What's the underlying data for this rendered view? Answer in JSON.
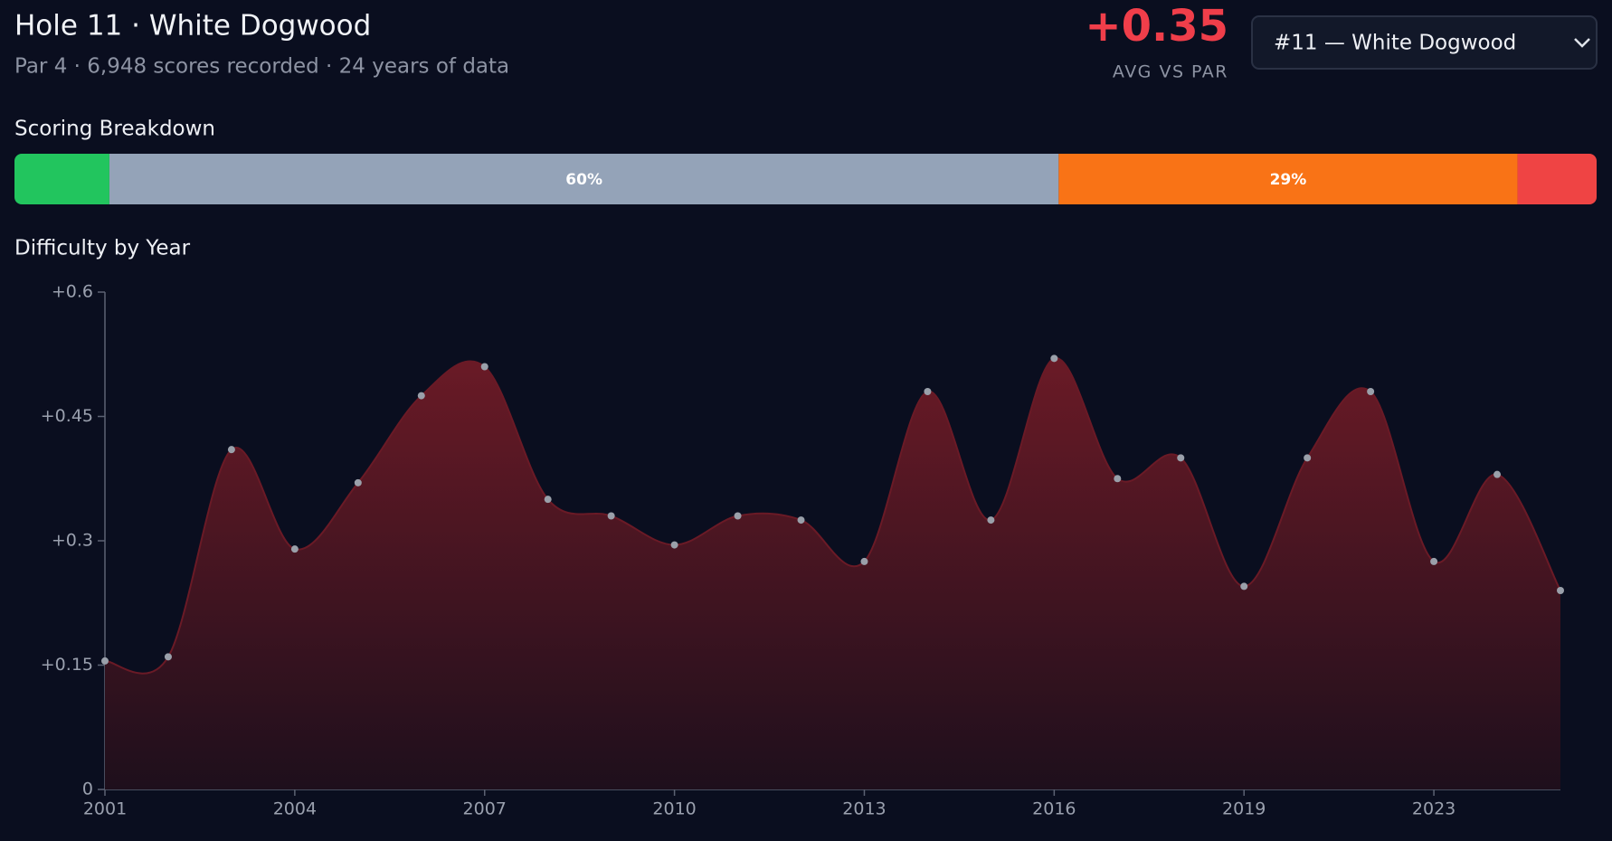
{
  "header": {
    "title": "Hole 11 · White Dogwood",
    "subtitle": "Par 4 · 6,948 scores recorded · 24 years of data",
    "stat": "+0.35",
    "stat_label": "AVG VS PAR",
    "dropdown": "#11 — White Dogwood"
  },
  "chart_data": [
    {
      "type": "stacked_bar",
      "title": "Scoring Breakdown",
      "values": [
        6,
        60,
        29,
        5
      ],
      "value_labels": [
        null,
        "60%",
        "29%",
        null
      ],
      "colors": [
        "#22c55e",
        "#94a3b8",
        "#f97316",
        "#ef4444"
      ],
      "xlim": [
        0,
        100
      ]
    },
    {
      "type": "area",
      "title": "Difficulty by Year",
      "categories": [
        "2001",
        null,
        null,
        "2004",
        null,
        null,
        "2007",
        null,
        null,
        "2010",
        null,
        null,
        "2013",
        null,
        null,
        "2016",
        null,
        null,
        "2019",
        null,
        null,
        "2023",
        null,
        null
      ],
      "values": [
        0.155,
        0.16,
        0.41,
        0.29,
        0.37,
        0.475,
        0.51,
        0.35,
        0.33,
        0.295,
        0.33,
        0.325,
        0.275,
        0.48,
        0.325,
        0.52,
        0.375,
        0.4,
        0.245,
        0.4,
        0.48,
        0.275,
        0.38,
        0.24
      ],
      "ylim": [
        0,
        0.6
      ],
      "yticks": [
        0,
        {
          "value": 0.15,
          "label": "+0.15"
        },
        {
          "value": 0.3,
          "label": "+0.3"
        },
        {
          "value": 0.45,
          "label": "+0.45"
        },
        {
          "value": 0.6,
          "label": "+0.6"
        }
      ],
      "color": "#9aa0aa",
      "fill_top": "#6a1a26",
      "fill_bottom": "#1e0f1c"
    }
  ]
}
